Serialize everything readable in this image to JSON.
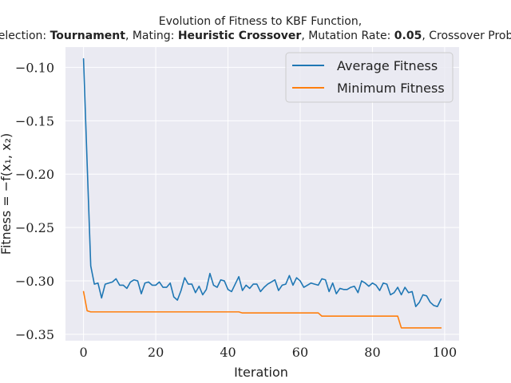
{
  "chart_data": {
    "type": "line",
    "title": {
      "line1": "Evolution of Fitness to KBF Function,",
      "line2_parts": [
        {
          "text": "Selection: ",
          "bold": false
        },
        {
          "text": "Tournament",
          "bold": true
        },
        {
          "text": ", Mating: ",
          "bold": false
        },
        {
          "text": "Heuristic Crossover",
          "bold": true
        },
        {
          "text": ", Mutation Rate: ",
          "bold": false
        },
        {
          "text": "0.05",
          "bold": true
        },
        {
          "text": ", Crossover Prob: ",
          "bold": false
        }
      ]
    },
    "xlabel": "Iteration",
    "ylabel": "Fitness = −f(x₁, x₂)",
    "xlim": [
      -5,
      104
    ],
    "ylim": [
      -0.356,
      -0.081
    ],
    "xticks": [
      0,
      20,
      40,
      60,
      80,
      100
    ],
    "xtick_labels": [
      "0",
      "20",
      "40",
      "60",
      "80",
      "100"
    ],
    "yticks": [
      -0.1,
      -0.15,
      -0.2,
      -0.25,
      -0.3,
      -0.35
    ],
    "ytick_labels": [
      "−0.10",
      "−0.15",
      "−0.20",
      "−0.25",
      "−0.30",
      "−0.35"
    ],
    "grid": true,
    "legend_position": "top-right",
    "background": "#eaeaf2",
    "series": [
      {
        "name": "Average Fitness",
        "color": "#1f77b4",
        "x": [
          0,
          1,
          2,
          3,
          4,
          5,
          6,
          7,
          8,
          9,
          10,
          11,
          12,
          13,
          14,
          15,
          16,
          17,
          18,
          19,
          20,
          21,
          22,
          23,
          24,
          25,
          26,
          27,
          28,
          29,
          30,
          31,
          32,
          33,
          34,
          35,
          36,
          37,
          38,
          39,
          40,
          41,
          42,
          43,
          44,
          45,
          46,
          47,
          48,
          49,
          50,
          51,
          52,
          53,
          54,
          55,
          56,
          57,
          58,
          59,
          60,
          61,
          62,
          63,
          64,
          65,
          66,
          67,
          68,
          69,
          70,
          71,
          72,
          73,
          74,
          75,
          76,
          77,
          78,
          79,
          80,
          81,
          82,
          83,
          84,
          85,
          86,
          87,
          88,
          89,
          90,
          91,
          92,
          93,
          94,
          95,
          96,
          97,
          98,
          99
        ],
        "values": [
          -0.092,
          -0.19,
          -0.286,
          -0.303,
          -0.302,
          -0.316,
          -0.303,
          -0.302,
          -0.301,
          -0.298,
          -0.304,
          -0.304,
          -0.307,
          -0.301,
          -0.299,
          -0.3,
          -0.312,
          -0.302,
          -0.301,
          -0.304,
          -0.304,
          -0.301,
          -0.306,
          -0.306,
          -0.302,
          -0.315,
          -0.318,
          -0.309,
          -0.297,
          -0.303,
          -0.303,
          -0.311,
          -0.305,
          -0.313,
          -0.308,
          -0.293,
          -0.304,
          -0.306,
          -0.299,
          -0.3,
          -0.308,
          -0.31,
          -0.303,
          -0.296,
          -0.309,
          -0.304,
          -0.307,
          -0.303,
          -0.303,
          -0.31,
          -0.306,
          -0.303,
          -0.301,
          -0.299,
          -0.309,
          -0.304,
          -0.303,
          -0.295,
          -0.304,
          -0.297,
          -0.3,
          -0.306,
          -0.304,
          -0.302,
          -0.303,
          -0.304,
          -0.298,
          -0.299,
          -0.31,
          -0.302,
          -0.312,
          -0.307,
          -0.308,
          -0.308,
          -0.306,
          -0.305,
          -0.311,
          -0.3,
          -0.302,
          -0.305,
          -0.302,
          -0.304,
          -0.309,
          -0.302,
          -0.303,
          -0.313,
          -0.311,
          -0.306,
          -0.313,
          -0.306,
          -0.311,
          -0.31,
          -0.324,
          -0.32,
          -0.313,
          -0.314,
          -0.32,
          -0.323,
          -0.324,
          -0.317
        ]
      },
      {
        "name": "Minimum Fitness",
        "color": "#ff7f0e",
        "x": [
          0,
          1,
          2,
          3,
          43,
          44,
          65,
          66,
          87,
          88,
          99
        ],
        "values": [
          -0.31,
          -0.328,
          -0.329,
          -0.329,
          -0.329,
          -0.33,
          -0.33,
          -0.333,
          -0.333,
          -0.344,
          -0.344
        ]
      }
    ]
  }
}
